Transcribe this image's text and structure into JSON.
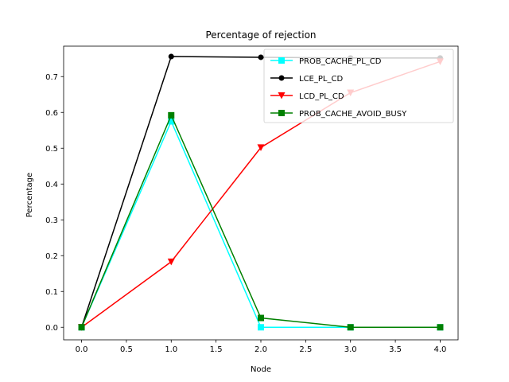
{
  "chart_data": {
    "type": "line",
    "title": "Percentage of rejection",
    "xlabel": "Node",
    "ylabel": "Percentage",
    "xlim": [
      -0.2,
      4.2
    ],
    "ylim": [
      -0.035,
      0.785
    ],
    "x_ticks": [
      0.0,
      0.5,
      1.0,
      1.5,
      2.0,
      2.5,
      3.0,
      3.5,
      4.0
    ],
    "x_tick_labels": [
      "0.0",
      "0.5",
      "1.0",
      "1.5",
      "2.0",
      "2.5",
      "3.0",
      "3.5",
      "4.0"
    ],
    "y_ticks": [
      0.0,
      0.1,
      0.2,
      0.3,
      0.4,
      0.5,
      0.6,
      0.7
    ],
    "y_tick_labels": [
      "0.0",
      "0.1",
      "0.2",
      "0.3",
      "0.4",
      "0.5",
      "0.6",
      "0.7"
    ],
    "grid": false,
    "legend_position": "top-right",
    "x": [
      0,
      1,
      2,
      3,
      4
    ],
    "series": [
      {
        "name": "PROB_CACHE_PL_CD",
        "values": [
          0.0,
          0.575,
          0.0,
          0.0,
          0.0
        ],
        "color": "#00ffff",
        "marker": "square"
      },
      {
        "name": "LCE_PL_CD",
        "values": [
          0.0,
          0.756,
          0.754,
          0.752,
          0.752
        ],
        "color": "#000000",
        "marker": "circle"
      },
      {
        "name": "LCD_PL_CD",
        "values": [
          0.0,
          0.183,
          0.502,
          0.655,
          0.742
        ],
        "color": "#ff0000",
        "marker": "triangle-down"
      },
      {
        "name": "PROB_CACHE_AVOID_BUSY",
        "values": [
          0.0,
          0.592,
          0.026,
          0.0,
          0.0
        ],
        "color": "#008000",
        "marker": "square"
      }
    ]
  }
}
